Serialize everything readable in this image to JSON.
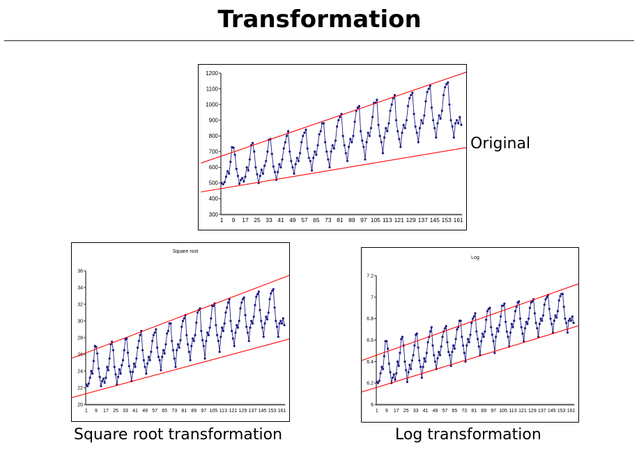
{
  "slide": {
    "title": "Transformation",
    "labels": {
      "original": "Original",
      "square_root": "Square root transformation",
      "log": "Log transformation"
    }
  },
  "colors": {
    "series": "#1a1a80",
    "trend": "#ff0000",
    "grid": "#000000"
  },
  "chart_data": [
    {
      "id": "original",
      "type": "line",
      "title": "",
      "xlabel": "",
      "ylabel": "",
      "ylim": [
        300,
        1200
      ],
      "yticks": [
        "300",
        "400",
        "500",
        "600",
        "700",
        "800",
        "900",
        "1000",
        "1100",
        "1200"
      ],
      "xticks": [
        "1",
        "9",
        "17",
        "25",
        "33",
        "41",
        "49",
        "57",
        "65",
        "73",
        "81",
        "89",
        "97",
        "105",
        "113",
        "121",
        "129",
        "137",
        "145",
        "153",
        "161"
      ],
      "series": [
        {
          "values": [
            500,
            492,
            505,
            540,
            575,
            560,
            635,
            728,
            725,
            680,
            590,
            545,
            495,
            520,
            532,
            510,
            540,
            600,
            580,
            650,
            740,
            755,
            700,
            600,
            555,
            500,
            545,
            585,
            560,
            610,
            640,
            700,
            775,
            780,
            685,
            605,
            570,
            520,
            570,
            620,
            600,
            650,
            720,
            760,
            800,
            830,
            700,
            640,
            600,
            560,
            620,
            660,
            640,
            690,
            760,
            800,
            820,
            840,
            720,
            660,
            640,
            580,
            660,
            700,
            680,
            740,
            810,
            830,
            880,
            880,
            760,
            700,
            650,
            600,
            700,
            740,
            720,
            770,
            860,
            900,
            920,
            940,
            800,
            740,
            690,
            640,
            730,
            780,
            760,
            800,
            890,
            960,
            980,
            990,
            830,
            770,
            730,
            650,
            760,
            820,
            800,
            850,
            920,
            1010,
            1010,
            1030,
            870,
            800,
            760,
            690,
            790,
            850,
            830,
            880,
            960,
            1000,
            1040,
            1060,
            900,
            830,
            780,
            730,
            820,
            870,
            850,
            900,
            990,
            1040,
            1060,
            1075,
            940,
            860,
            820,
            760,
            850,
            900,
            880,
            930,
            1020,
            1080,
            1100,
            1120,
            980,
            900,
            850,
            790,
            880,
            930,
            910,
            960,
            1060,
            1110,
            1130,
            1140,
            1000,
            900,
            860,
            790,
            880,
            900,
            880,
            920,
            870
          ]
        }
      ],
      "trend_lines": [
        {
          "name": "upper",
          "x": [
            1,
            166
          ],
          "y": [
            672,
            1205
          ]
        },
        {
          "name": "lower",
          "x": [
            1,
            166
          ],
          "y": [
            465,
            725
          ]
        }
      ]
    },
    {
      "id": "square_root",
      "type": "line",
      "title": "Square root",
      "xlabel": "",
      "ylabel": "",
      "ylim": [
        20,
        36
      ],
      "yticks": [
        "20",
        "22",
        "24",
        "26",
        "28",
        "30",
        "32",
        "34",
        "36"
      ],
      "xticks": [
        "1",
        "9",
        "17",
        "25",
        "33",
        "41",
        "49",
        "57",
        "65",
        "73",
        "81",
        "89",
        "97",
        "105",
        "113",
        "121",
        "129",
        "137",
        "145",
        "153",
        "161"
      ],
      "series": [
        {
          "values": [
            22.4,
            22.2,
            22.5,
            23.2,
            24.0,
            23.7,
            25.2,
            27.0,
            26.9,
            26.1,
            24.3,
            23.3,
            22.2,
            22.8,
            23.1,
            22.6,
            23.2,
            24.5,
            24.1,
            25.5,
            27.2,
            27.5,
            26.5,
            24.5,
            23.6,
            22.4,
            23.3,
            24.2,
            23.7,
            24.7,
            25.3,
            26.5,
            27.8,
            27.9,
            26.2,
            24.6,
            23.9,
            22.8,
            23.9,
            24.9,
            24.5,
            25.5,
            26.8,
            27.6,
            28.3,
            28.8,
            26.5,
            25.3,
            24.5,
            23.7,
            24.9,
            25.7,
            25.3,
            26.3,
            27.6,
            28.3,
            28.6,
            29.0,
            26.8,
            25.7,
            25.3,
            24.1,
            25.7,
            26.5,
            26.1,
            27.2,
            28.5,
            28.8,
            29.7,
            29.7,
            27.6,
            26.5,
            25.5,
            24.5,
            26.5,
            27.2,
            26.8,
            27.7,
            29.3,
            30.0,
            30.3,
            30.7,
            28.3,
            27.2,
            26.3,
            25.3,
            27.0,
            27.9,
            27.6,
            28.3,
            29.8,
            31.0,
            31.3,
            31.5,
            28.8,
            27.7,
            27.0,
            25.5,
            27.6,
            28.6,
            28.3,
            29.2,
            30.3,
            31.8,
            31.8,
            32.1,
            29.5,
            28.3,
            27.6,
            26.3,
            28.1,
            29.2,
            28.8,
            29.7,
            31.0,
            31.6,
            32.2,
            32.6,
            30.0,
            28.8,
            27.9,
            27.0,
            28.6,
            29.5,
            29.2,
            30.0,
            31.5,
            32.2,
            32.6,
            32.8,
            30.7,
            29.3,
            28.6,
            27.6,
            29.2,
            30.0,
            29.7,
            30.5,
            31.9,
            32.9,
            33.2,
            33.5,
            31.3,
            30.0,
            29.2,
            28.1,
            29.7,
            30.5,
            30.2,
            31.0,
            32.6,
            33.3,
            33.6,
            33.8,
            31.6,
            30.0,
            29.3,
            28.1,
            29.7,
            30.0,
            29.7,
            30.3,
            29.5
          ]
        }
      ],
      "trend_lines": [
        {
          "name": "upper",
          "x": [
            1,
            166
          ],
          "y": [
            26.2,
            35.4
          ]
        },
        {
          "name": "lower",
          "x": [
            1,
            166
          ],
          "y": [
            21.3,
            27.8
          ]
        }
      ]
    },
    {
      "id": "log",
      "type": "line",
      "title": "Log",
      "xlabel": "",
      "ylabel": "",
      "ylim": [
        6,
        7.2
      ],
      "yticks": [
        "6",
        "6.2",
        "6.4",
        "6.6",
        "6.8",
        "7",
        "7.2"
      ],
      "xticks": [
        "1",
        "9",
        "17",
        "25",
        "33",
        "41",
        "49",
        "57",
        "65",
        "73",
        "81",
        "89",
        "97",
        "105",
        "113",
        "121",
        "129",
        "137",
        "145",
        "153",
        "161"
      ],
      "series": [
        {
          "values": [
            6.21,
            6.2,
            6.22,
            6.29,
            6.35,
            6.33,
            6.45,
            6.59,
            6.59,
            6.52,
            6.38,
            6.3,
            6.2,
            6.25,
            6.28,
            6.23,
            6.29,
            6.4,
            6.36,
            6.48,
            6.61,
            6.63,
            6.55,
            6.4,
            6.32,
            6.21,
            6.3,
            6.37,
            6.33,
            6.41,
            6.46,
            6.55,
            6.65,
            6.66,
            6.53,
            6.41,
            6.35,
            6.25,
            6.35,
            6.43,
            6.4,
            6.48,
            6.58,
            6.63,
            6.68,
            6.72,
            6.55,
            6.46,
            6.4,
            6.33,
            6.43,
            6.49,
            6.46,
            6.54,
            6.63,
            6.68,
            6.71,
            6.73,
            6.58,
            6.49,
            6.46,
            6.36,
            6.49,
            6.55,
            6.52,
            6.61,
            6.7,
            6.72,
            6.78,
            6.78,
            6.63,
            6.55,
            6.48,
            6.4,
            6.55,
            6.61,
            6.58,
            6.65,
            6.76,
            6.8,
            6.82,
            6.85,
            6.68,
            6.61,
            6.54,
            6.46,
            6.59,
            6.66,
            6.63,
            6.68,
            6.79,
            6.87,
            6.89,
            6.9,
            6.72,
            6.65,
            6.59,
            6.48,
            6.63,
            6.71,
            6.68,
            6.74,
            6.82,
            6.92,
            6.92,
            6.94,
            6.77,
            6.68,
            6.63,
            6.54,
            6.67,
            6.75,
            6.72,
            6.78,
            6.87,
            6.91,
            6.95,
            6.96,
            6.8,
            6.72,
            6.66,
            6.59,
            6.71,
            6.77,
            6.75,
            6.8,
            6.9,
            6.95,
            6.96,
            6.98,
            6.85,
            6.76,
            6.71,
            6.63,
            6.75,
            6.8,
            6.78,
            6.83,
            6.93,
            6.98,
            7.0,
            7.02,
            6.89,
            6.8,
            6.75,
            6.67,
            6.78,
            6.83,
            6.81,
            6.87,
            6.97,
            7.01,
            7.03,
            7.03,
            6.91,
            6.8,
            6.76,
            6.67,
            6.78,
            6.8,
            6.78,
            6.82,
            6.76
          ]
        }
      ],
      "trend_lines": [
        {
          "name": "upper",
          "x": [
            1,
            166
          ],
          "y": [
            6.46,
            7.12
          ]
        },
        {
          "name": "lower",
          "x": [
            1,
            166
          ],
          "y": [
            6.16,
            6.73
          ]
        }
      ]
    }
  ]
}
